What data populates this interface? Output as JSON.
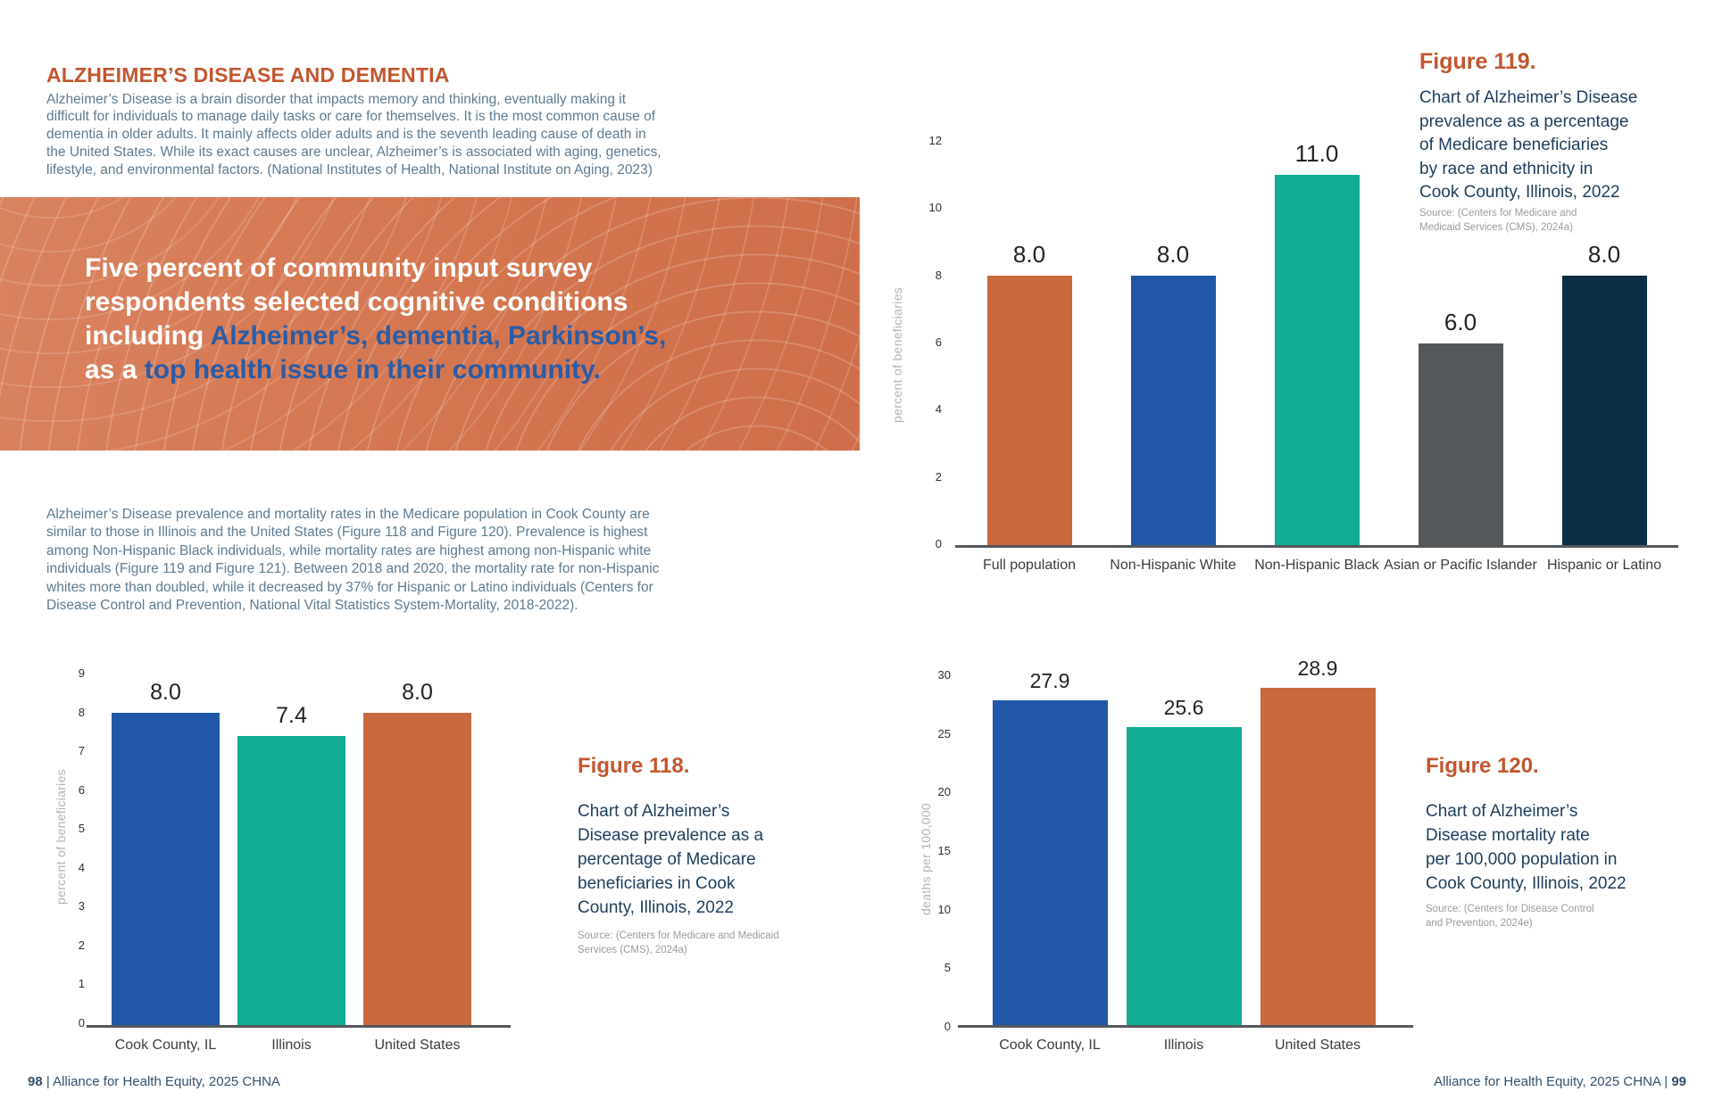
{
  "page": {
    "section_title": "ALZHEIMER’S DISEASE AND DEMENTIA",
    "intro_paragraph": "Alzheimer’s Disease is a brain disorder that impacts memory and thinking, eventually making it\ndifficult for individuals to manage daily tasks or care for themselves. It is the most common cause of\ndementia in older adults.  It mainly affects older adults and is the seventh leading cause of death in\nthe United States. While its exact causes are unclear, Alzheimer’s is associated with aging, genetics,\nlifestyle, and environmental factors. (National Institutes of Health, National Institute on Aging, 2023)",
    "body_paragraph": "Alzheimer’s Disease prevalence and mortality rates in the Medicare population in Cook County are\nsimilar to those in Illinois and the United States (Figure 118 and Figure 120). Prevalence is highest\namong Non-Hispanic Black individuals, while mortality rates are highest among non-Hispanic white\nindividuals (Figure 119 and Figure 121). Between 2018 and 2020, the mortality rate for non-Hispanic\nwhites more than doubled, while it decreased by 37% for Hispanic or Latino individuals (Centers for\nDisease Control and Prevention, National Vital Statistics System-Mortality, 2018-2022).",
    "callout": {
      "s1_white": "Five percent of community input survey\nrespondents selected cognitive conditions\nincluding ",
      "s2_blue": "Alzheimer’s, dementia, Parkinson’s,\n",
      "s3_white": "as a ",
      "s4_blue": "top health issue in their community."
    },
    "footer_left": {
      "page_number": "98",
      "text": " | Alliance for Health Equity, 2025 CHNA"
    },
    "footer_right": {
      "text": "Alliance for Health Equity, 2025 CHNA  | ",
      "page_number": "99"
    }
  },
  "figures": {
    "fig118": {
      "label": "Figure 118.",
      "caption": "Chart of Alzheimer’s\nDisease prevalence as a\npercentage of Medicare\nbeneficiaries in Cook\nCounty, Illinois, 2022",
      "source": "Source:  (Centers for Medicare and Medicaid\nServices (CMS), 2024a)"
    },
    "fig119": {
      "label": "Figure 119.",
      "caption": "Chart of Alzheimer’s Disease\nprevalence as a percentage\nof Medicare beneficiaries\nby race and ethnicity in\nCook County, Illinois, 2022",
      "source": "Source: (Centers for Medicare and\nMedicaid Services (CMS), 2024a)"
    },
    "fig120": {
      "label": "Figure 120.",
      "caption": "Chart of Alzheimer’s\nDisease mortality rate\nper 100,000 population in\nCook County, Illinois, 2022",
      "source": "Source: (Centers for Disease Control\nand Prevention, 2024e)"
    }
  },
  "chart_data": [
    {
      "id": "figure-118",
      "type": "bar",
      "title": "",
      "categories": [
        "Cook County, IL",
        "Illinois",
        "United States"
      ],
      "values": [
        8.0,
        7.4,
        8.0
      ],
      "value_labels": [
        "8.0",
        "7.4",
        "8.0"
      ],
      "bar_colors": [
        "#2257A8",
        "#12AC95",
        "#C8693F"
      ],
      "xlabel": "",
      "ylabel": "percent of beneficiaries",
      "yticks": [
        9,
        8,
        7,
        6,
        5,
        4,
        3,
        2,
        1,
        0
      ],
      "ylim": [
        0,
        9
      ],
      "grid": false,
      "legend": false
    },
    {
      "id": "figure-119",
      "type": "bar",
      "title": "",
      "categories": [
        "Full population",
        "Non-Hispanic White",
        "Non-Hispanic Black",
        "Asian or Pacific Islander",
        "Hispanic or Latino"
      ],
      "values": [
        8.0,
        8.0,
        11.0,
        6.0,
        8.0
      ],
      "value_labels": [
        "8.0",
        "8.0",
        "11.0",
        "6.0",
        "8.0"
      ],
      "bar_colors": [
        "#C8693F",
        "#2257A8",
        "#12AC95",
        "#55585B",
        "#0D2E45"
      ],
      "xlabel": "",
      "ylabel": "percent of beneficiaries",
      "yticks": [
        12,
        10,
        8,
        6,
        4,
        2,
        0
      ],
      "ylim": [
        0,
        12
      ],
      "grid": false,
      "legend": false
    },
    {
      "id": "figure-120",
      "type": "bar",
      "title": "",
      "categories": [
        "Cook County, IL",
        "Illinois",
        "United States"
      ],
      "values": [
        27.9,
        25.6,
        28.9
      ],
      "value_labels": [
        "27.9",
        "25.6",
        "28.9"
      ],
      "bar_colors": [
        "#2257A8",
        "#12AC95",
        "#C8693F"
      ],
      "xlabel": "",
      "ylabel": "deaths per 100,000",
      "yticks": [
        30,
        25,
        20,
        15,
        10,
        5,
        0
      ],
      "ylim": [
        0,
        30
      ],
      "grid": false,
      "legend": false
    }
  ],
  "colors": {
    "accent_orange": "#C2562E",
    "callout_background": "#D3754F",
    "callout_blue_text": "#2B5CA6",
    "body_text": "#5E7B90",
    "caption_navy": "#1E3D5C",
    "axis_line": "#55585B",
    "source_gray": "#9B9B9B"
  }
}
